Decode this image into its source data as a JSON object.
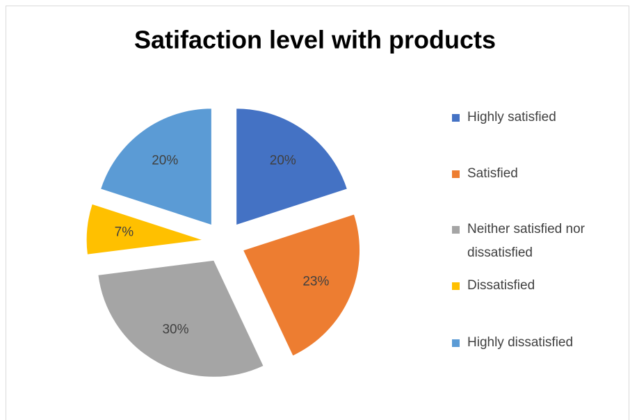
{
  "chart_data": {
    "type": "pie",
    "title": "Satifaction level with products",
    "categories": [
      "Highly satisfied",
      "Satisfied",
      "Neither satisfied nor dissatisfied",
      "Dissatisfied",
      "Highly dissatisfied"
    ],
    "values": [
      20,
      23,
      30,
      7,
      20
    ],
    "value_labels": [
      "20%",
      "23%",
      "30%",
      "7%",
      "20%"
    ],
    "colors": [
      "#4472c4",
      "#ed7d31",
      "#a5a5a5",
      "#ffc000",
      "#5b9bd5"
    ],
    "legend": "right"
  }
}
